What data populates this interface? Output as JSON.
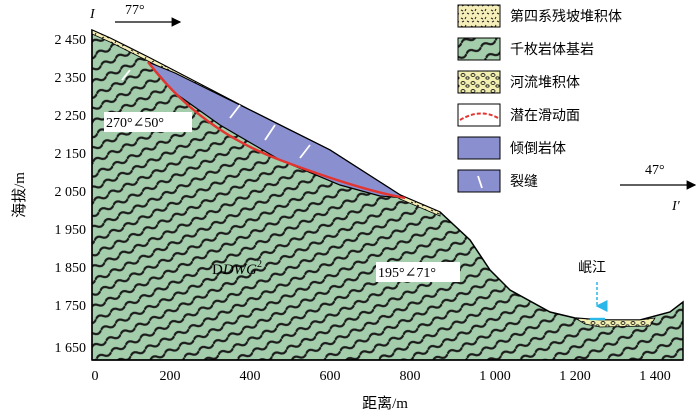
{
  "section": {
    "left_label": "I",
    "right_label": "I′",
    "left_bearing": "77°",
    "right_bearing": "47°"
  },
  "axes": {
    "ylabel": "海拔/m",
    "xlabel": "距离/m",
    "y_ticks": [
      "2 450",
      "2 350",
      "2 250",
      "2 150",
      "2 050",
      "1 950",
      "1 850",
      "1 750",
      "1 650"
    ],
    "x_ticks": [
      "0",
      "200",
      "400",
      "600",
      "800",
      "1 000",
      "1 200",
      "1 400"
    ]
  },
  "annotations": {
    "upper_attitude": "270°∠50°",
    "lower_attitude": "195°∠71°",
    "formation_main": "DWG",
    "formation_sup": "2",
    "river": "岷江"
  },
  "legend": [
    {
      "label": "第四系残坡堆积体",
      "pattern": "quaternary-deposit",
      "color": "#f5eeb8"
    },
    {
      "label": "千枚岩体基岩",
      "pattern": "phyllite-bedrock",
      "color": "#9fc9a6"
    },
    {
      "label": "河流堆积体",
      "pattern": "alluvial-deposit",
      "color": "#f2efb0"
    },
    {
      "label": "潜在滑动面",
      "pattern": "slip-surface",
      "color": "#e3342f"
    },
    {
      "label": "倾倒岩体",
      "pattern": "toppled-rock",
      "color": "#8a8fcf"
    },
    {
      "label": "裂缝",
      "pattern": "crack",
      "color": "#ffffff"
    }
  ]
}
